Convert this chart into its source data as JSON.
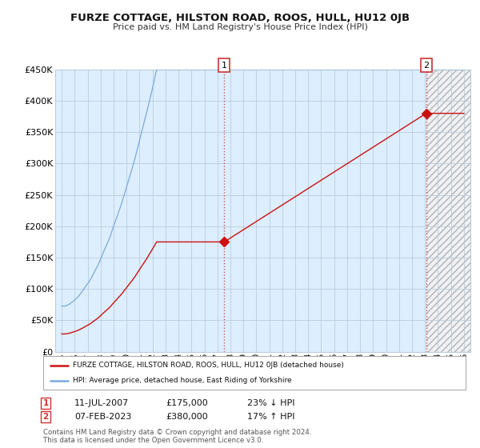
{
  "title": "FURZE COTTAGE, HILSTON ROAD, ROOS, HULL, HU12 0JB",
  "subtitle": "Price paid vs. HM Land Registry's House Price Index (HPI)",
  "hpi_color": "#7aaadd",
  "property_color": "#cc1111",
  "sale1_date": "11-JUL-2007",
  "sale1_price": 175000,
  "sale1_label": "23% ↓ HPI",
  "sale2_date": "07-FEB-2023",
  "sale2_price": 380000,
  "sale2_label": "17% ↑ HPI",
  "legend_property": "FURZE COTTAGE, HILSTON ROAD, ROOS, HULL, HU12 0JB (detached house)",
  "legend_hpi": "HPI: Average price, detached house, East Riding of Yorkshire",
  "footer1": "Contains HM Land Registry data © Crown copyright and database right 2024.",
  "footer2": "This data is licensed under the Open Government Licence v3.0.",
  "ylim": [
    0,
    450000
  ],
  "yticks": [
    0,
    50000,
    100000,
    150000,
    200000,
    250000,
    300000,
    350000,
    400000,
    450000
  ],
  "background_color": "#ffffff",
  "plot_bg_color": "#ddeeff",
  "grid_color": "#bbccdd",
  "xstart": 1995,
  "xend": 2026,
  "sale1_year": 2007.527,
  "sale2_year": 2023.096
}
